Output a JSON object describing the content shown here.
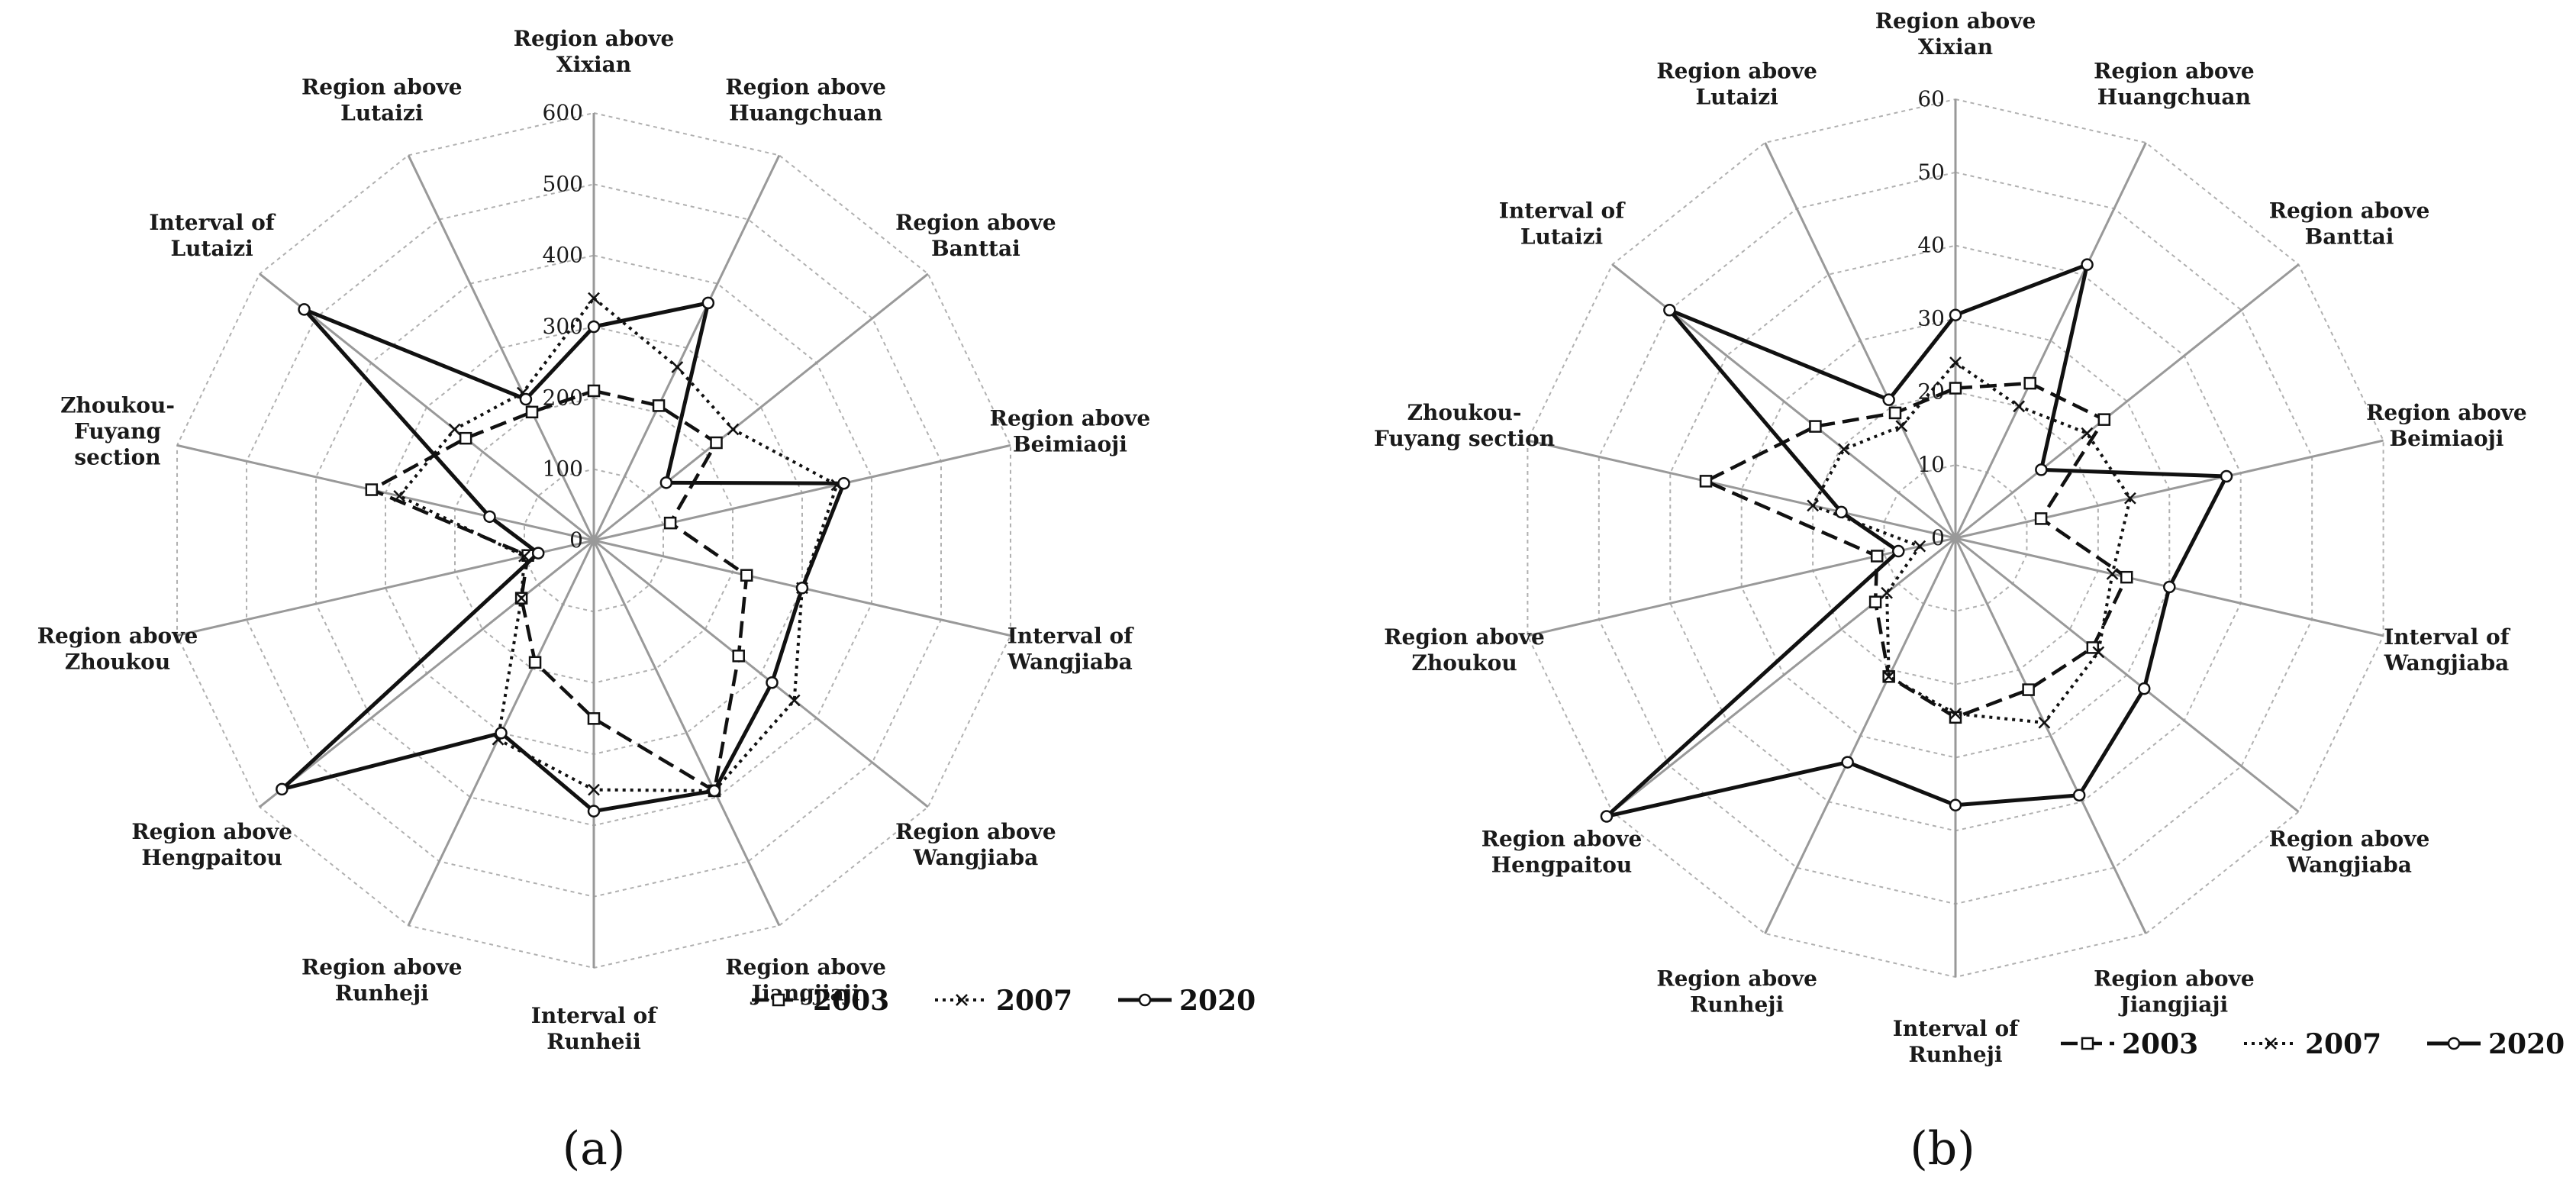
{
  "chart_data": [
    {
      "type": "radar",
      "panel_label": "(a)",
      "categories": [
        "Region above Xixian",
        "Region above Huangchuan",
        "Region above Banttai",
        "Region above Beimiaoji",
        "Interval of Wangjiaba",
        "Region above Wangjiaba",
        "Region above Jiangjiaji",
        "Interval of Runheii",
        "Region above Runheji",
        "Region above Hengpaitou",
        "Region above Zhoukou",
        "Zhoukou-Fuyang section",
        "Interval of Lutaizi",
        "Region above Lutaizi"
      ],
      "ylim": [
        0,
        600
      ],
      "ticks": [
        0,
        100,
        200,
        300,
        400,
        500,
        600
      ],
      "grid": true,
      "legend_position": "bottom-right",
      "series": [
        {
          "name": "2003",
          "values": [
            210,
            210,
            220,
            110,
            220,
            260,
            390,
            250,
            190,
            130,
            95,
            320,
            230,
            200
          ]
        },
        {
          "name": "2007",
          "values": [
            340,
            270,
            250,
            350,
            300,
            360,
            390,
            350,
            310,
            130,
            100,
            280,
            250,
            230
          ]
        },
        {
          "name": "2020",
          "values": [
            300,
            370,
            130,
            360,
            300,
            320,
            390,
            380,
            300,
            560,
            80,
            150,
            520,
            220
          ]
        }
      ]
    },
    {
      "type": "radar",
      "panel_label": "(b)",
      "categories": [
        "Region above Xixian",
        "Region above Huangchuan",
        "Region above Banttai",
        "Region above Beimiaoji",
        "Interval of Wangjiaba",
        "Region above Wangjiaba",
        "Region above Jiangjiaji",
        "Interval of Runheji",
        "Region above Runheji",
        "Region above Hengpaitou",
        "Region above Zhoukou",
        "Zhoukou-Fuyang section",
        "Interval of Lutaizi",
        "Region above Lutaizi"
      ],
      "ylim": [
        0,
        60
      ],
      "ticks": [
        0,
        10,
        20,
        30,
        40,
        50,
        60
      ],
      "grid": true,
      "legend_position": "bottom-right",
      "series": [
        {
          "name": "2003",
          "values": [
            20.5,
            23.5,
            26,
            12,
            24,
            24,
            23,
            24.5,
            21,
            14,
            11,
            35,
            24.5,
            19
          ]
        },
        {
          "name": "2007",
          "values": [
            24,
            20,
            23,
            24.5,
            22,
            25,
            28,
            24,
            21,
            12,
            5,
            20,
            19.5,
            17
          ]
        },
        {
          "name": "2020",
          "values": [
            30.5,
            41.5,
            15,
            38,
            30,
            33,
            39,
            36.5,
            34,
            61,
            8,
            16,
            50,
            21
          ]
        }
      ]
    }
  ],
  "colors": {
    "line": "#111111",
    "spoke": "#999999",
    "grid": "#b0b0b0"
  }
}
